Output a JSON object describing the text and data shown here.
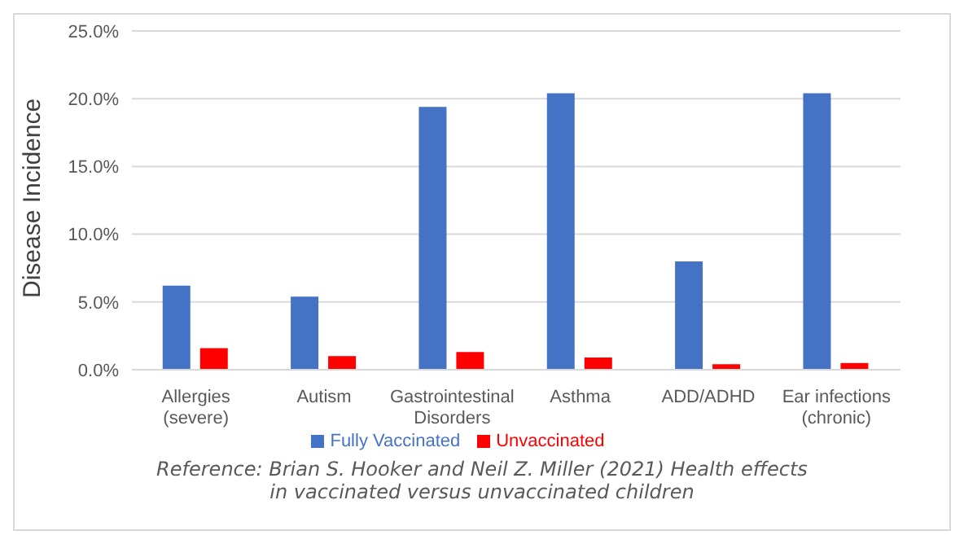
{
  "chart_data": {
    "type": "bar",
    "ylabel": "Disease Incidence",
    "categories": [
      "Allergies\n(severe)",
      "Autism",
      "Gastrointestinal\nDisorders",
      "Asthma",
      "ADD/ADHD",
      "Ear infections\n(chronic)"
    ],
    "series": [
      {
        "name": "Fully Vaccinated",
        "color": "#4472c4",
        "values": [
          6.2,
          5.4,
          19.4,
          20.4,
          8.0,
          20.4
        ]
      },
      {
        "name": "Unvaccinated",
        "color": "#ff0000",
        "values": [
          1.6,
          1.0,
          1.3,
          0.9,
          0.4,
          0.5
        ]
      }
    ],
    "ylim": [
      0,
      25
    ],
    "yticks": [
      {
        "value": 0,
        "label": "0.0%"
      },
      {
        "value": 5,
        "label": "5.0%"
      },
      {
        "value": 10,
        "label": "10.0%"
      },
      {
        "value": 15,
        "label": "15.0%"
      },
      {
        "value": 20,
        "label": "20.0%"
      },
      {
        "value": 25,
        "label": "25.0%"
      }
    ],
    "grid": "y",
    "legend": "bottom",
    "annotations": [
      "Reference:  Brian S. Hooker and Neil Z. Miller (2021) Health effects in vaccinated versus unvaccinated children"
    ]
  }
}
